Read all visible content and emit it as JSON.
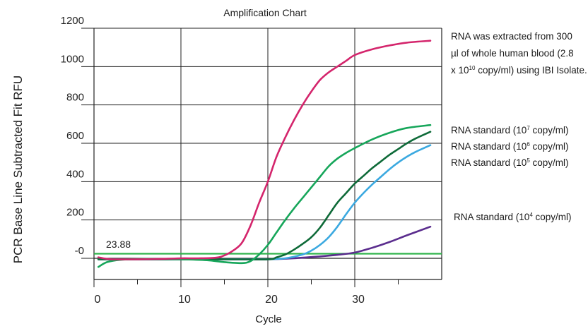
{
  "chart_data": {
    "type": "line",
    "title": "Amplification Chart",
    "xlabel": "Cycle",
    "ylabel": "PCR Base Line Subtracted Fit RFU",
    "xlim": [
      0,
      40
    ],
    "ylim": [
      -100,
      1200
    ],
    "grid": true,
    "x_ticks": [
      0,
      10,
      20,
      30
    ],
    "x_tick_labels": [
      "0",
      "10",
      "20",
      "30"
    ],
    "y_ticks": [
      0,
      200,
      400,
      600,
      800,
      1000,
      1200
    ],
    "y_tick_labels": [
      "-0",
      "200",
      "400",
      "600",
      "800",
      "1000",
      "1200"
    ],
    "threshold": {
      "value": 23.88,
      "label": "23.88",
      "color": "#2fb34a"
    },
    "series": [
      {
        "color": "#d4256c",
        "x": [
          0.5,
          2,
          5,
          8,
          10,
          12,
          14,
          15,
          16,
          17,
          18,
          19,
          20,
          21,
          22,
          23,
          24,
          25,
          26,
          27,
          28,
          29,
          30,
          32,
          34,
          36,
          38.7
        ],
        "y": [
          5,
          -5,
          -5,
          -3,
          0,
          0,
          3,
          15,
          40,
          80,
          170,
          290,
          400,
          530,
          630,
          720,
          800,
          870,
          930,
          970,
          1000,
          1030,
          1060,
          1090,
          1110,
          1125,
          1135
        ]
      },
      {
        "color": "#16a65a",
        "x": [
          0.5,
          1.5,
          3,
          6,
          10,
          13,
          15,
          17,
          18,
          19,
          20,
          21,
          22,
          23,
          24,
          25,
          26,
          27,
          28,
          29,
          30,
          32,
          34,
          36,
          38.7
        ],
        "y": [
          -45,
          -20,
          -8,
          -3,
          -5,
          -10,
          -20,
          -25,
          -15,
          20,
          70,
          135,
          200,
          260,
          315,
          370,
          425,
          480,
          520,
          550,
          575,
          620,
          655,
          680,
          695
        ]
      },
      {
        "color": "#0e6a38",
        "x": [
          0.5,
          5,
          10,
          15,
          20,
          21,
          22,
          23,
          24,
          25,
          26,
          27,
          28,
          29,
          30,
          31,
          32,
          33,
          34,
          35,
          36,
          37,
          38.7
        ],
        "y": [
          -5,
          -5,
          -5,
          -5,
          -5,
          5,
          20,
          45,
          75,
          110,
          160,
          225,
          290,
          340,
          390,
          430,
          470,
          505,
          540,
          570,
          600,
          625,
          660
        ]
      },
      {
        "color": "#3ba9e0",
        "x": [
          0.5,
          5,
          10,
          15,
          20,
          22,
          24,
          25,
          26,
          27,
          28,
          29,
          30,
          31,
          32,
          33,
          34,
          35,
          36,
          37,
          38.7
        ],
        "y": [
          -5,
          -5,
          -5,
          -5,
          -5,
          0,
          20,
          40,
          70,
          110,
          165,
          230,
          290,
          340,
          385,
          425,
          465,
          500,
          530,
          555,
          590
        ]
      },
      {
        "color": "#5b2d8e",
        "x": [
          0.5,
          5,
          10,
          15,
          20,
          23,
          26,
          28,
          30,
          32,
          34,
          36,
          38.7
        ],
        "y": [
          -5,
          -5,
          -5,
          -5,
          -5,
          0,
          10,
          18,
          30,
          55,
          85,
          120,
          165
        ]
      }
    ],
    "annotations": [
      {
        "lines": [
          "RNA was extracted from 300",
          "µl of whole human blood (2.8"
        ],
        "pre": "x 10",
        "sup": "10",
        "post": " copy/ml) using IBI Isolate."
      },
      {
        "pre": "RNA standard (10",
        "sup": "7",
        "post": " copy/ml)"
      },
      {
        "pre": "RNA standard (10",
        "sup": "6",
        "post": " copy/ml)"
      },
      {
        "pre": "RNA standard (10",
        "sup": "5",
        "post": " copy/ml)"
      },
      {
        "pre": "RNA standard (10",
        "sup": "4",
        "post": " copy/ml)"
      }
    ]
  }
}
